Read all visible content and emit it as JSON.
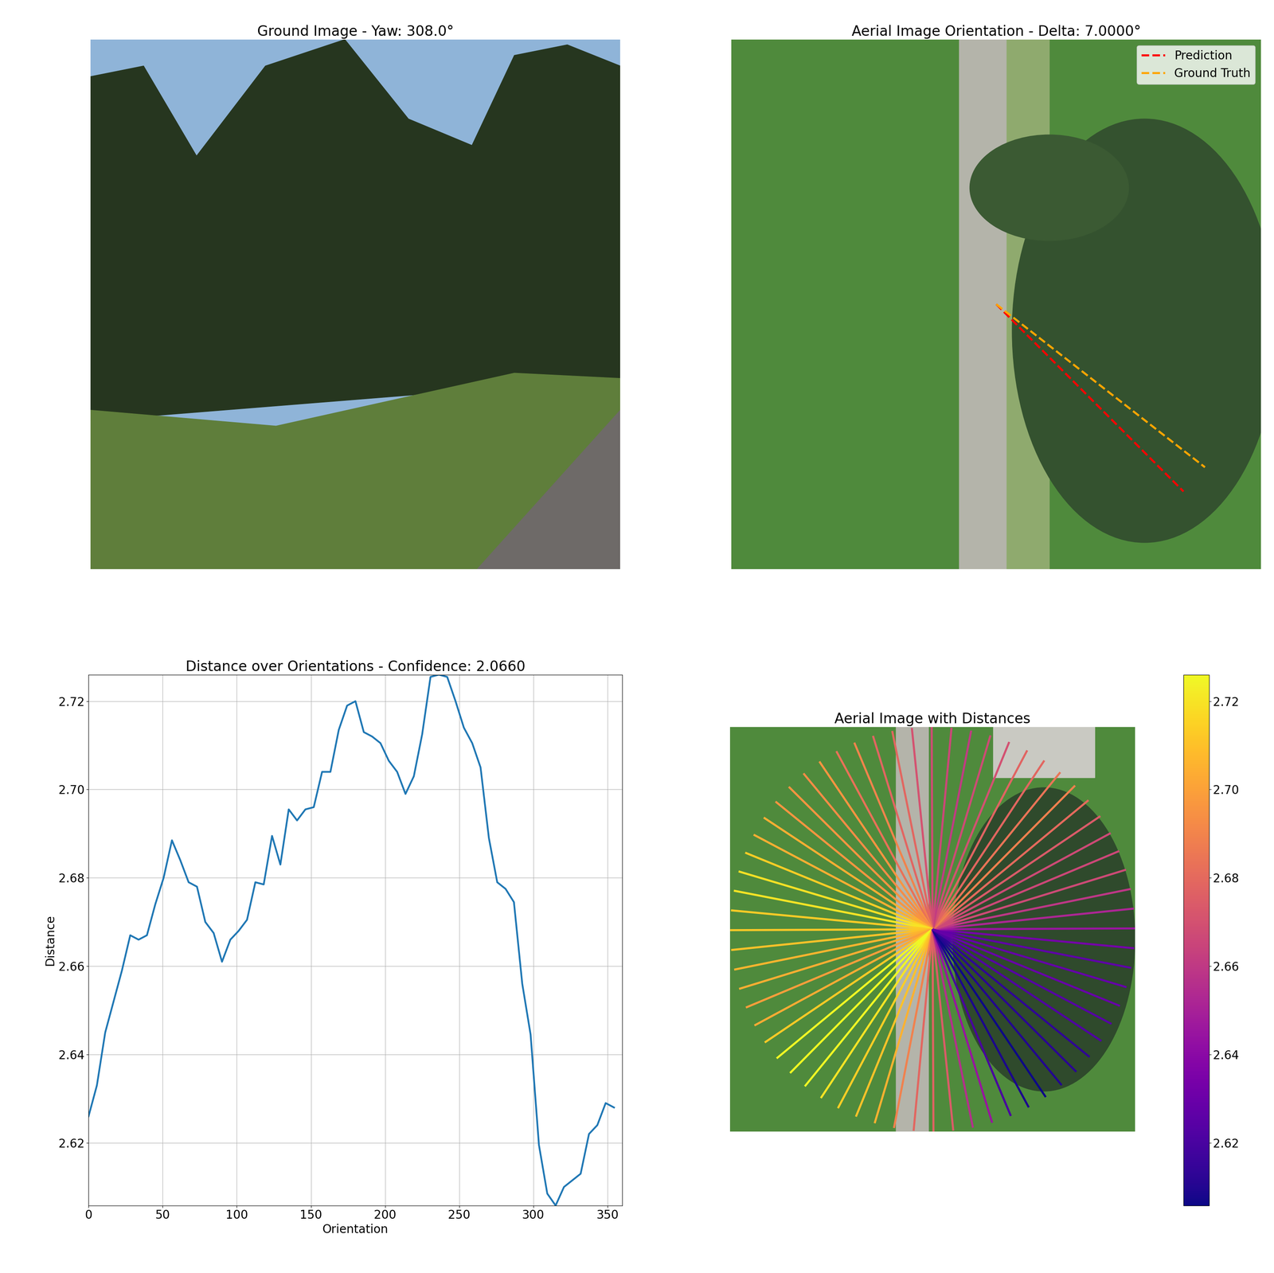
{
  "chart_data": [
    {
      "type": "image",
      "title": "Ground Image - Yaw: 308.0°",
      "tick_labels": false
    },
    {
      "type": "orientation_map",
      "title": "Aerial Image Orientation - Delta: 7.0000°",
      "tick_labels": false,
      "legend": "upper right",
      "series": [
        {
          "name": "Prediction",
          "color": "#ff0000",
          "line_style": "dashed",
          "values": [
            315
          ]
        },
        {
          "name": "Ground Truth",
          "color": "#ffa500",
          "line_style": "dashed",
          "values": [
            308
          ]
        }
      ]
    },
    {
      "type": "line",
      "title": "Distance over Orientations - Confidence: 2.0660",
      "x_label": "Orientation",
      "y_label": "Distance",
      "x": [
        0,
        5.625,
        11.25,
        16.875,
        22.5,
        28.125,
        33.75,
        39.375,
        45,
        50.625,
        56.25,
        61.875,
        67.5,
        73.125,
        78.75,
        84.375,
        90,
        95.625,
        101.25,
        106.875,
        112.5,
        118.125,
        123.75,
        129.375,
        135,
        140.625,
        146.25,
        151.875,
        157.5,
        163.125,
        168.75,
        174.375,
        180,
        185.625,
        191.25,
        196.875,
        202.5,
        208.125,
        213.75,
        219.375,
        225,
        230.625,
        236.25,
        241.875,
        247.5,
        253.125,
        258.75,
        264.375,
        270,
        275.625,
        281.25,
        286.875,
        292.5,
        298.125,
        303.75,
        309.375,
        315,
        320.625,
        326.25,
        331.875,
        337.5,
        343.125,
        348.75,
        354.375
      ],
      "values": [
        2.626,
        2.633,
        2.645,
        2.652,
        2.659,
        2.667,
        2.666,
        2.667,
        2.674,
        2.68,
        2.6885,
        2.684,
        2.679,
        2.678,
        2.67,
        2.6675,
        2.661,
        2.666,
        2.668,
        2.6705,
        2.679,
        2.6785,
        2.6895,
        2.683,
        2.6955,
        2.693,
        2.6955,
        2.696,
        2.704,
        2.704,
        2.7135,
        2.719,
        2.72,
        2.713,
        2.712,
        2.7105,
        2.7065,
        2.704,
        2.699,
        2.703,
        2.7125,
        2.7255,
        2.726,
        2.7255,
        2.72,
        2.714,
        2.7105,
        2.705,
        2.689,
        2.679,
        2.6775,
        2.6745,
        2.656,
        2.6445,
        2.6195,
        2.6085,
        2.6058,
        2.61,
        2.6115,
        2.613,
        2.622,
        2.624,
        2.629,
        2.628
      ],
      "color": "#1f77b4",
      "xlim": [
        0,
        360
      ],
      "ylim": [
        2.6058,
        2.726
      ],
      "xticks": [
        0,
        50,
        100,
        150,
        200,
        250,
        300,
        350
      ],
      "yticks": [
        2.62,
        2.64,
        2.66,
        2.68,
        {
          "value": 2.7,
          "label": "2.70"
        },
        2.72
      ],
      "grid": true
    },
    {
      "type": "ray_map",
      "title": "Aerial Image with Distances",
      "tick_labels": false,
      "color": "plasma",
      "x": [
        0,
        5.625,
        11.25,
        16.875,
        22.5,
        28.125,
        33.75,
        39.375,
        45,
        50.625,
        56.25,
        61.875,
        67.5,
        73.125,
        78.75,
        84.375,
        90,
        95.625,
        101.25,
        106.875,
        112.5,
        118.125,
        123.75,
        129.375,
        135,
        140.625,
        146.25,
        151.875,
        157.5,
        163.125,
        168.75,
        174.375,
        180,
        185.625,
        191.25,
        196.875,
        202.5,
        208.125,
        213.75,
        219.375,
        225,
        230.625,
        236.25,
        241.875,
        247.5,
        253.125,
        258.75,
        264.375,
        270,
        275.625,
        281.25,
        286.875,
        292.5,
        298.125,
        303.75,
        309.375,
        315,
        320.625,
        326.25,
        331.875,
        337.5,
        343.125,
        348.75,
        354.375
      ],
      "values": [
        2.626,
        2.633,
        2.645,
        2.652,
        2.659,
        2.667,
        2.666,
        2.667,
        2.674,
        2.68,
        2.6885,
        2.684,
        2.679,
        2.678,
        2.67,
        2.6675,
        2.661,
        2.666,
        2.668,
        2.6705,
        2.679,
        2.6785,
        2.6895,
        2.683,
        2.6955,
        2.693,
        2.6955,
        2.696,
        2.704,
        2.704,
        2.7135,
        2.719,
        2.72,
        2.713,
        2.712,
        2.7105,
        2.7065,
        2.704,
        2.699,
        2.703,
        2.7125,
        2.7255,
        2.726,
        2.7255,
        2.72,
        2.714,
        2.7105,
        2.705,
        2.689,
        2.679,
        2.6775,
        2.6745,
        2.656,
        2.6445,
        2.6195,
        2.6085,
        2.6058,
        2.61,
        2.6115,
        2.613,
        2.622,
        2.624,
        2.629,
        2.628
      ],
      "colorbar_lim": [
        2.6058,
        2.726
      ],
      "colorbar_ticks": [
        2.62,
        2.64,
        2.66,
        2.68,
        {
          "value": 2.7,
          "label": "2.70"
        },
        2.72
      ]
    }
  ]
}
